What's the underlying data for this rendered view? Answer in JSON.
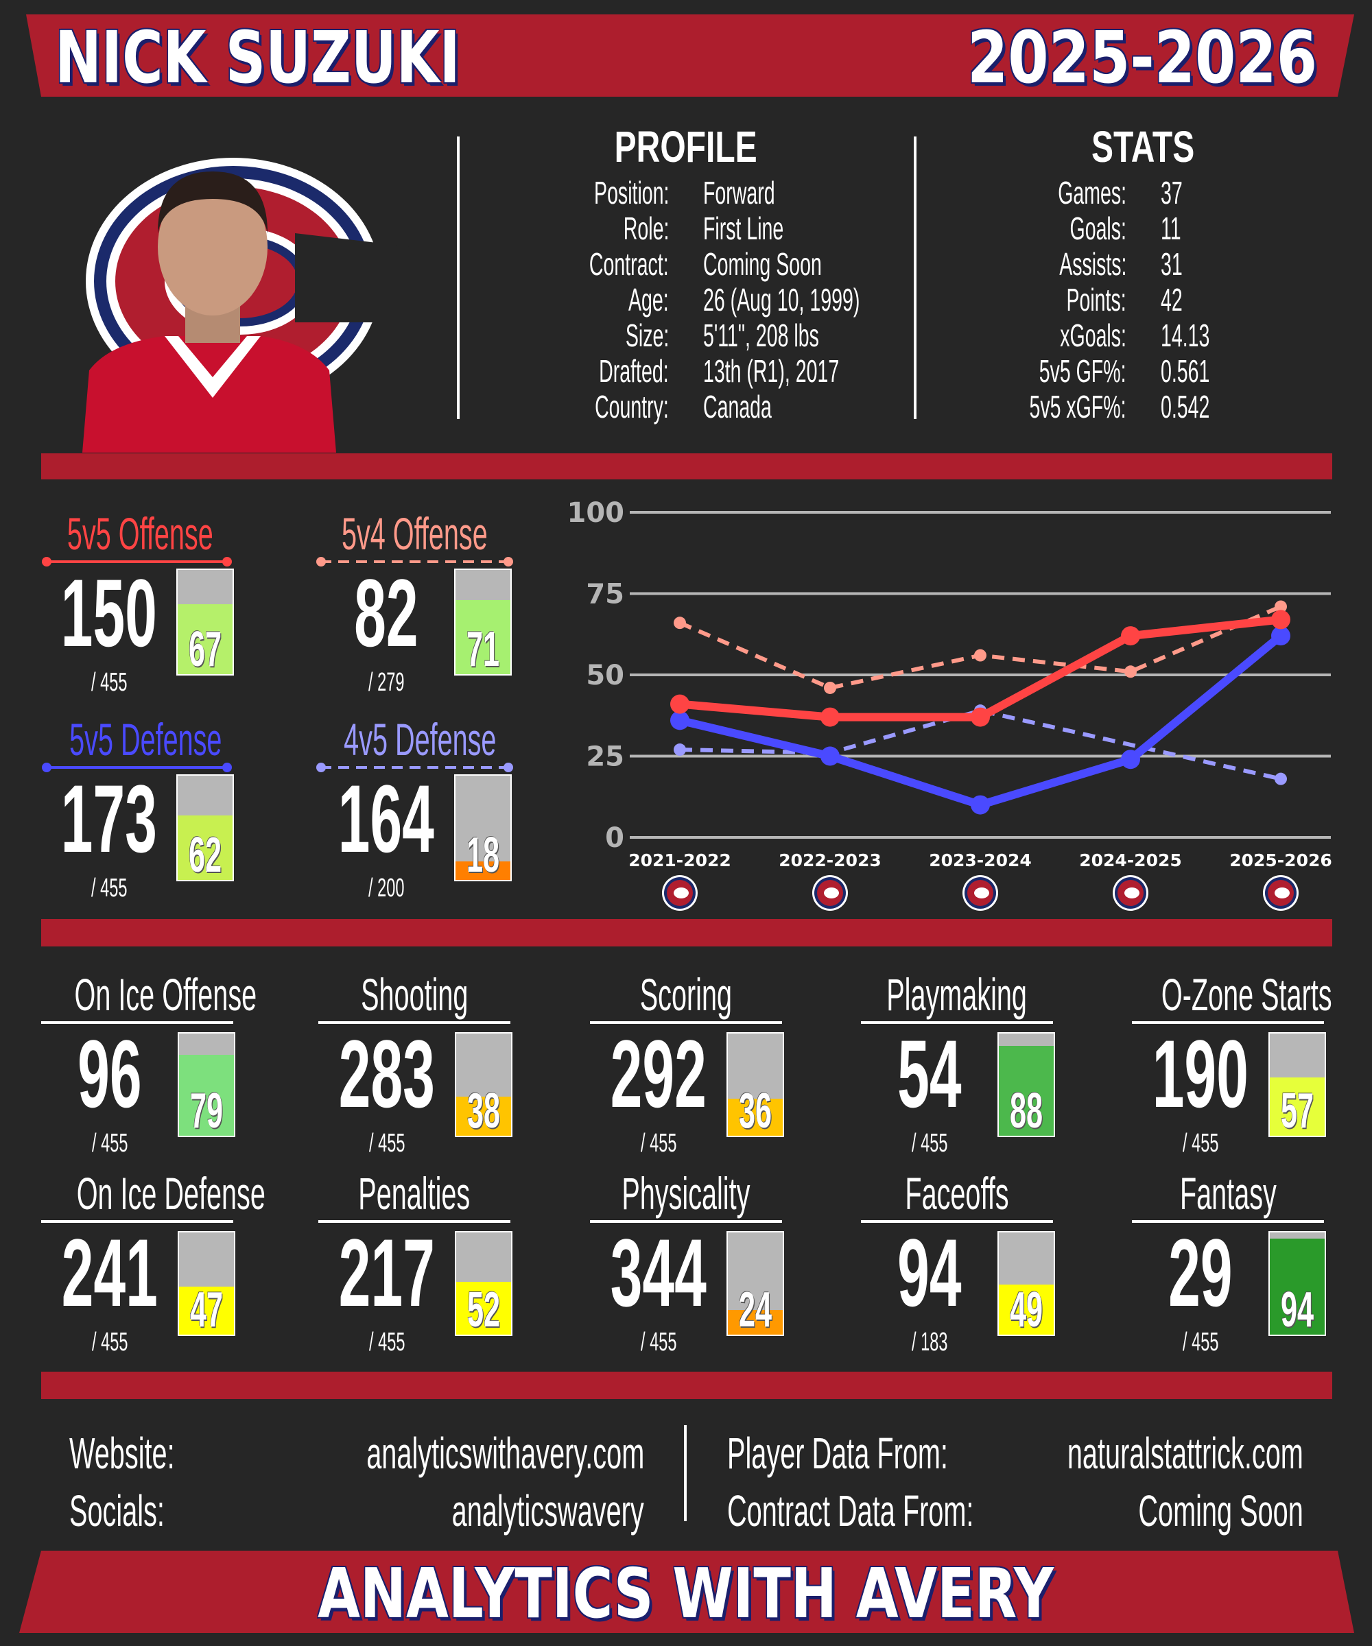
{
  "header": {
    "name": "NICK SUZUKI",
    "season": "2025-2026"
  },
  "profile": {
    "title": "PROFILE",
    "rows": [
      {
        "label": "Position:",
        "value": "Forward"
      },
      {
        "label": "Role:",
        "value": "First Line"
      },
      {
        "label": "Contract:",
        "value": "Coming Soon"
      },
      {
        "label": "Age:",
        "value": "26 (Aug 10, 1999)"
      },
      {
        "label": "Size:",
        "value": "5'11\", 208 lbs"
      },
      {
        "label": "Drafted:",
        "value": "13th (R1), 2017"
      },
      {
        "label": "Country:",
        "value": "Canada"
      }
    ]
  },
  "stats": {
    "title": "STATS",
    "rows": [
      {
        "label": "Games:",
        "value": "37"
      },
      {
        "label": "Goals:",
        "value": "11"
      },
      {
        "label": "Assists:",
        "value": "31"
      },
      {
        "label": "Points:",
        "value": "42"
      },
      {
        "label": "xGoals:",
        "value": "14.13"
      },
      {
        "label": "5v5 GF%:",
        "value": "0.561"
      },
      {
        "label": "5v5 xGF%:",
        "value": "0.542"
      }
    ]
  },
  "situational": [
    {
      "title": "5v5 Offense",
      "rank": "150",
      "total": "/ 455",
      "percentile": 67,
      "title_color": "#ff4444",
      "bar_color": "#b5f06a",
      "dashed": false
    },
    {
      "title": "5v4 Offense",
      "rank": "82",
      "total": "/ 279",
      "percentile": 71,
      "title_color": "#ff9a8a",
      "bar_color": "#a6f070",
      "dashed": true
    },
    {
      "title": "5v5 Defense",
      "rank": "173",
      "total": "/ 455",
      "percentile": 62,
      "title_color": "#4a4aff",
      "bar_color": "#c8f050",
      "dashed": false
    },
    {
      "title": "4v5 Defense",
      "rank": "164",
      "total": "/ 200",
      "percentile": 18,
      "title_color": "#9a9aff",
      "bar_color": "#ff7f00",
      "dashed": true
    }
  ],
  "chart_data": {
    "type": "line",
    "categories": [
      "2021-2022",
      "2022-2023",
      "2023-2024",
      "2024-2025",
      "2025-2026"
    ],
    "ylim": [
      0,
      100
    ],
    "yticks": [
      "0",
      "25",
      "50",
      "75",
      "100"
    ],
    "grid": true,
    "series": [
      {
        "values": [
          27,
          26,
          39,
          null,
          18
        ],
        "color": "#9a9aff",
        "dashed": true
      },
      {
        "values": [
          66,
          46,
          56,
          51,
          71
        ],
        "color": "#ff9a8a",
        "dashed": true
      },
      {
        "values": [
          36,
          25,
          10,
          24,
          62
        ],
        "color": "#4a4aff",
        "dashed": false
      },
      {
        "values": [
          41,
          37,
          37,
          62,
          67
        ],
        "color": "#ff4444",
        "dashed": false
      }
    ]
  },
  "categories": [
    {
      "title": "On Ice Offense",
      "rank": "96",
      "total": "/ 455",
      "percentile": 79,
      "bar_color": "#7de07d"
    },
    {
      "title": "Shooting",
      "rank": "283",
      "total": "/ 455",
      "percentile": 38,
      "bar_color": "#ffc400"
    },
    {
      "title": "Scoring",
      "rank": "292",
      "total": "/ 455",
      "percentile": 36,
      "bar_color": "#ffc400"
    },
    {
      "title": "Playmaking",
      "rank": "54",
      "total": "/ 455",
      "percentile": 88,
      "bar_color": "#4cb84c"
    },
    {
      "title": "O-Zone Starts",
      "rank": "190",
      "total": "/ 455",
      "percentile": 57,
      "bar_color": "#e6ff3a"
    },
    {
      "title": "On Ice Defense",
      "rank": "241",
      "total": "/ 455",
      "percentile": 47,
      "bar_color": "#ffff00"
    },
    {
      "title": "Penalties",
      "rank": "217",
      "total": "/ 455",
      "percentile": 52,
      "bar_color": "#ffff00"
    },
    {
      "title": "Physicality",
      "rank": "344",
      "total": "/ 455",
      "percentile": 24,
      "bar_color": "#ff9900"
    },
    {
      "title": "Faceoffs",
      "rank": "94",
      "total": "/ 183",
      "percentile": 49,
      "bar_color": "#ffff00"
    },
    {
      "title": "Fantasy",
      "rank": "29",
      "total": "/ 455",
      "percentile": 94,
      "bar_color": "#2a9a2a"
    }
  ],
  "footer": {
    "website_label": "Website:",
    "website": "analyticswithavery.com",
    "socials_label": "Socials:",
    "socials": "analyticswavery",
    "player_data_label": "Player Data From:",
    "player_data": "naturalstattrick.com",
    "contract_label": "Contract Data From:",
    "contract": "Coming Soon"
  },
  "banner": "ANALYTICS WITH AVERY",
  "colors": {
    "brand_red": "#ad1e2d",
    "navy": "#1b1f6b",
    "background": "#262626"
  }
}
